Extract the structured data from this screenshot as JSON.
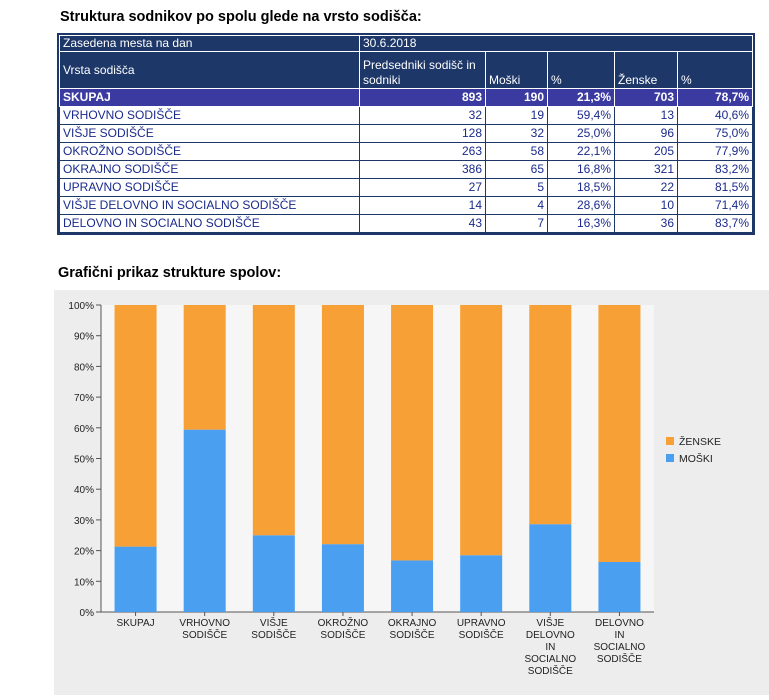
{
  "title_table": "Struktura sodnikov po spolu glede na vrsto sodišča:",
  "title_chart": "Grafični prikaz strukture spolov:",
  "table": {
    "header_row1": [
      "Zasedena mesta na dan",
      "30.6.2018"
    ],
    "header_row2": [
      "Vrsta sodišča",
      "Predsedniki sodišč in sodniki",
      "Moški",
      "%",
      "Ženske",
      "%"
    ],
    "total": [
      "SKUPAJ",
      "893",
      "190",
      "21,3%",
      "703",
      "78,7%"
    ],
    "rows": [
      [
        "VRHOVNO SODIŠČE",
        "32",
        "19",
        "59,4%",
        "13",
        "40,6%"
      ],
      [
        "VIŠJE SODIŠČE",
        "128",
        "32",
        "25,0%",
        "96",
        "75,0%"
      ],
      [
        "OKROŽNO SODIŠČE",
        "263",
        "58",
        "22,1%",
        "205",
        "77,9%"
      ],
      [
        "OKRAJNO SODIŠČE",
        "386",
        "65",
        "16,8%",
        "321",
        "83,2%"
      ],
      [
        "UPRAVNO SODIŠČE",
        "27",
        "5",
        "18,5%",
        "22",
        "81,5%"
      ],
      [
        "VIŠJE DELOVNO IN SOCIALNO SODIŠČE",
        "14",
        "4",
        "28,6%",
        "10",
        "71,4%"
      ],
      [
        "DELOVNO IN SOCIALNO SODIŠČE",
        "43",
        "7",
        "16,3%",
        "36",
        "83,7%"
      ]
    ]
  },
  "chart_data": {
    "type": "bar",
    "stacked": true,
    "percent": true,
    "categories": [
      [
        "SKUPAJ"
      ],
      [
        "VRHOVNO",
        "SODIŠČE"
      ],
      [
        "VIŠJE",
        "SODIŠČE"
      ],
      [
        "OKROŽNO",
        "SODIŠČE"
      ],
      [
        "OKRAJNO",
        "SODIŠČE"
      ],
      [
        "UPRAVNO",
        "SODIŠČE"
      ],
      [
        "VIŠJE",
        "DELOVNO",
        "IN",
        "SOCIALNO",
        "SODIŠČE"
      ],
      [
        "DELOVNO",
        "IN",
        "SOCIALNO",
        "SODIŠČE"
      ]
    ],
    "series": [
      {
        "name": "MOŠKI",
        "color": "#4a9ff0",
        "values": [
          21.3,
          59.4,
          25.0,
          22.1,
          16.8,
          18.5,
          28.6,
          16.3
        ]
      },
      {
        "name": "ŽENSKE",
        "color": "#f7a035",
        "values": [
          78.7,
          40.6,
          75.0,
          77.9,
          83.2,
          81.5,
          71.4,
          83.7
        ]
      }
    ],
    "yticks": [
      "0%",
      "10%",
      "20%",
      "30%",
      "40%",
      "50%",
      "60%",
      "70%",
      "80%",
      "90%",
      "100%"
    ],
    "ylim": [
      0,
      100
    ],
    "legend": [
      "ŽENSKE",
      "MOŠKI"
    ],
    "legend_position": "right",
    "grid": false
  }
}
